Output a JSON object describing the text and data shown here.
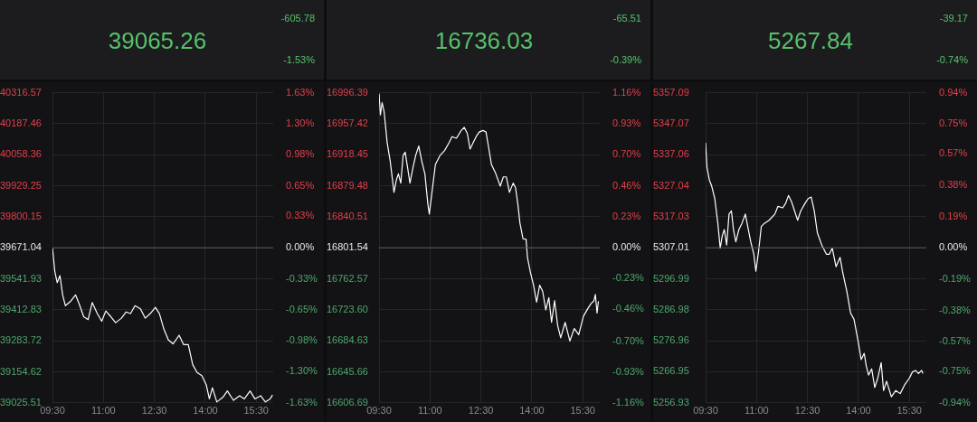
{
  "chart_data": [
    {
      "type": "line",
      "annotations": [
        "39065.26",
        "-605.78",
        "-1.53%"
      ],
      "x": [
        9.5,
        9.57,
        9.64,
        9.72,
        9.8,
        9.88,
        10.04,
        10.18,
        10.29,
        10.42,
        10.55,
        10.67,
        10.82,
        10.95,
        11.07,
        11.22,
        11.36,
        11.53,
        11.67,
        11.8,
        11.93,
        12.09,
        12.23,
        12.38,
        12.53,
        12.65,
        12.78,
        12.91,
        13.05,
        13.23,
        13.36,
        13.5,
        13.63,
        13.76,
        13.9,
        14.03,
        14.12,
        14.21,
        14.34,
        14.52,
        14.65,
        14.83,
        15.01,
        15.15,
        15.32,
        15.46,
        15.63,
        15.77,
        15.91,
        15.98
      ],
      "series": [
        {
          "color": "#ffffff",
          "values": [
            39671,
            39572,
            39526,
            39555,
            39475,
            39430,
            39449,
            39475,
            39436,
            39384,
            39372,
            39443,
            39397,
            39365,
            39408,
            39384,
            39359,
            39378,
            39404,
            39397,
            39430,
            39417,
            39378,
            39397,
            39423,
            39397,
            39333,
            39288,
            39271,
            39307,
            39268,
            39268,
            39184,
            39152,
            39139,
            39100,
            39042,
            39088,
            39029,
            39049,
            39075,
            39036,
            39055,
            39042,
            39075,
            39042,
            39055,
            39029,
            39042,
            39058
          ]
        }
      ],
      "xlim": [
        9.5,
        16
      ],
      "xticks": [
        {
          "value": 9.5,
          "label": "09:30"
        },
        {
          "value": 11,
          "label": "11:00"
        },
        {
          "value": 12.5,
          "label": "12:30"
        },
        {
          "value": 14,
          "label": "14:00"
        },
        {
          "value": 15.5,
          "label": "15:30"
        }
      ],
      "ylim": [
        39025.51,
        40316.57
      ],
      "yticks": [
        40316.57,
        40187.46,
        40058.36,
        39929.25,
        39800.15,
        39671.04,
        39541.93,
        39412.83,
        39283.72,
        39154.62,
        39025.51
      ],
      "y2lim": [
        -1.63,
        1.63
      ],
      "y2ticks": [
        {
          "value": 1.63,
          "label": "1.63%"
        },
        {
          "value": 1.3,
          "label": "1.30%"
        },
        {
          "value": 0.98,
          "label": "0.98%"
        },
        {
          "value": 0.65,
          "label": "0.65%"
        },
        {
          "value": 0.33,
          "label": "0.33%"
        },
        {
          "value": 0,
          "label": "0.00%"
        },
        {
          "value": -0.33,
          "label": "-0.33%"
        },
        {
          "value": -0.65,
          "label": "-0.65%"
        },
        {
          "value": -0.98,
          "label": "-0.98%"
        },
        {
          "value": -1.3,
          "label": "-1.30%"
        },
        {
          "value": -1.63,
          "label": "-1.63%"
        }
      ],
      "ref_lines": [
        {
          "axis": "y",
          "value": 39671.04,
          "color": "#5a5a5e"
        }
      ],
      "grid": true,
      "marker": "none"
    },
    {
      "type": "line",
      "annotations": [
        "16736.03",
        "-65.51",
        "-0.39%"
      ],
      "x": [
        9.5,
        9.54,
        9.59,
        9.65,
        9.74,
        9.83,
        9.94,
        10.01,
        10.07,
        10.14,
        10.21,
        10.27,
        10.34,
        10.41,
        10.5,
        10.58,
        10.67,
        10.76,
        10.85,
        10.94,
        10.98,
        11.07,
        11.16,
        11.3,
        11.43,
        11.56,
        11.65,
        11.78,
        11.92,
        12.01,
        12.1,
        12.18,
        12.27,
        12.36,
        12.45,
        12.56,
        12.65,
        12.72,
        12.81,
        12.94,
        13.07,
        13.16,
        13.25,
        13.34,
        13.45,
        13.52,
        13.59,
        13.65,
        13.74,
        13.83,
        13.87,
        13.96,
        14.05,
        14.14,
        14.23,
        14.32,
        14.41,
        14.5,
        14.58,
        14.67,
        14.76,
        14.85,
        14.98,
        15.12,
        15.25,
        15.38,
        15.52,
        15.65,
        15.74,
        15.83,
        15.87,
        15.92,
        15.96
      ],
      "series": [
        {
          "color": "#ffffff",
          "values": [
            16995,
            16968.4,
            16984,
            16972.3,
            16933.4,
            16910.1,
            16871.2,
            16886.7,
            16894.5,
            16882.8,
            16917.8,
            16921.7,
            16902.3,
            16882.8,
            16902.3,
            16917.8,
            16929.5,
            16910.1,
            16894.5,
            16855.6,
            16844,
            16875.1,
            16906.2,
            16917.8,
            16923.7,
            16933.4,
            16941.2,
            16939.2,
            16949,
            16952.8,
            16945.1,
            16925.6,
            16933.4,
            16941.2,
            16947,
            16949,
            16947,
            16929.5,
            16906.2,
            16894.5,
            16879,
            16890.6,
            16890.6,
            16871.2,
            16882.8,
            16877,
            16855.6,
            16832.3,
            16812.8,
            16812.1,
            16789.5,
            16770.1,
            16754.5,
            16733.1,
            16754.5,
            16746.7,
            16723.4,
            16738.9,
            16707.8,
            16735.1,
            16703.9,
            16688.4,
            16707.8,
            16684.5,
            16700.1,
            16692.3,
            16715.6,
            16725.3,
            16731.2,
            16735.1,
            16742.8,
            16719.5,
            16734.3
          ]
        }
      ],
      "xlim": [
        9.5,
        16
      ],
      "xticks": [
        {
          "value": 9.5,
          "label": "09:30"
        },
        {
          "value": 11,
          "label": "11:00"
        },
        {
          "value": 12.5,
          "label": "12:30"
        },
        {
          "value": 14,
          "label": "14:00"
        },
        {
          "value": 15.5,
          "label": "15:30"
        }
      ],
      "ylim": [
        16606.69,
        16996.39
      ],
      "yticks": [
        16996.39,
        16957.42,
        16918.45,
        16879.48,
        16840.51,
        16801.54,
        16762.57,
        {
          "value": 16723.6,
          "label": "16723.60"
        },
        16684.63,
        16645.66,
        16606.69
      ],
      "y2lim": [
        -1.16,
        1.16
      ],
      "y2ticks": [
        {
          "value": 1.16,
          "label": "1.16%"
        },
        {
          "value": 0.93,
          "label": "0.93%"
        },
        {
          "value": 0.7,
          "label": "0.70%"
        },
        {
          "value": 0.46,
          "label": "0.46%"
        },
        {
          "value": 0.23,
          "label": "0.23%"
        },
        {
          "value": 0,
          "label": "0.00%"
        },
        {
          "value": -0.23,
          "label": "-0.23%"
        },
        {
          "value": -0.46,
          "label": "-0.46%"
        },
        {
          "value": -0.7,
          "label": "-0.70%"
        },
        {
          "value": -0.93,
          "label": "-0.93%"
        },
        {
          "value": -1.16,
          "label": "-1.16%"
        }
      ],
      "ref_lines": [
        {
          "axis": "y",
          "value": 16801.54,
          "color": "#5a5a5e"
        }
      ],
      "grid": true,
      "marker": "none"
    },
    {
      "type": "line",
      "annotations": [
        "5267.84",
        "-39.17",
        "-0.74%"
      ],
      "x": [
        9.5,
        9.54,
        9.61,
        9.68,
        9.77,
        9.86,
        9.93,
        9.99,
        10.05,
        10.12,
        10.19,
        10.26,
        10.32,
        10.39,
        10.48,
        10.57,
        10.67,
        10.74,
        10.83,
        10.92,
        10.98,
        11.06,
        11.14,
        11.23,
        11.37,
        11.54,
        11.63,
        11.77,
        11.86,
        11.94,
        12.03,
        12.12,
        12.21,
        12.3,
        12.43,
        12.52,
        12.61,
        12.7,
        12.79,
        12.92,
        13.06,
        13.14,
        13.23,
        13.34,
        13.46,
        13.54,
        13.66,
        13.77,
        13.87,
        13.99,
        14.08,
        14.17,
        14.23,
        14.3,
        14.39,
        14.48,
        14.57,
        14.67,
        14.74,
        14.83,
        14.97,
        15.1,
        15.23,
        15.37,
        15.5,
        15.59,
        15.68,
        15.77,
        15.86,
        15.9
      ],
      "series": [
        {
          "color": "#ffffff",
          "values": [
            5340.9,
            5332.9,
            5328.9,
            5326.9,
            5322.9,
            5314.9,
            5306.9,
            5310.9,
            5312.9,
            5307.9,
            5317.9,
            5318.9,
            5312.9,
            5308.9,
            5312.9,
            5314.9,
            5317.9,
            5313.9,
            5308.9,
            5304.9,
            5299.4,
            5305.9,
            5313.9,
            5314.9,
            5315.9,
            5317.9,
            5320.4,
            5319.9,
            5321.4,
            5323.9,
            5321.9,
            5318.9,
            5315.9,
            5318.9,
            5321.4,
            5322.9,
            5323.4,
            5318.9,
            5311.9,
            5307.9,
            5304.9,
            5304.9,
            5306.9,
            5300.9,
            5303.9,
            5298.9,
            5292.9,
            5285.9,
            5283.9,
            5276.9,
            5270.9,
            5272.9,
            5268.9,
            5265.9,
            5267.9,
            5261.9,
            5264.9,
            5269.9,
            5260.9,
            5263.9,
            5258.9,
            5260.9,
            5259.9,
            5262.9,
            5264.9,
            5266.9,
            5267.4,
            5266.4,
            5267.4,
            5266.4
          ]
        }
      ],
      "xlim": [
        9.5,
        16
      ],
      "xticks": [
        {
          "value": 9.5,
          "label": "09:30"
        },
        {
          "value": 11,
          "label": "11:00"
        },
        {
          "value": 12.5,
          "label": "12:30"
        },
        {
          "value": 14,
          "label": "14:00"
        },
        {
          "value": 15.5,
          "label": "15:30"
        }
      ],
      "ylim": [
        5256.93,
        5357.09
      ],
      "yticks": [
        5357.09,
        5347.07,
        5337.06,
        5327.04,
        5317.03,
        5307.01,
        5296.99,
        5286.98,
        5276.96,
        5266.95,
        5256.93
      ],
      "y2lim": [
        -0.94,
        0.94
      ],
      "y2ticks": [
        {
          "value": 0.94,
          "label": "0.94%"
        },
        {
          "value": 0.75,
          "label": "0.75%"
        },
        {
          "value": 0.57,
          "label": "0.57%"
        },
        {
          "value": 0.38,
          "label": "0.38%"
        },
        {
          "value": 0.19,
          "label": "0.19%"
        },
        {
          "value": 0,
          "label": "0.00%"
        },
        {
          "value": -0.19,
          "label": "-0.19%"
        },
        {
          "value": -0.38,
          "label": "-0.38%"
        },
        {
          "value": -0.57,
          "label": "-0.57%"
        },
        {
          "value": -0.75,
          "label": "-0.75%"
        },
        {
          "value": -0.94,
          "label": "-0.94%"
        }
      ],
      "ref_lines": [
        {
          "axis": "y",
          "value": 5307.01,
          "color": "#5a5a5e"
        }
      ],
      "grid": true,
      "marker": "none"
    }
  ]
}
